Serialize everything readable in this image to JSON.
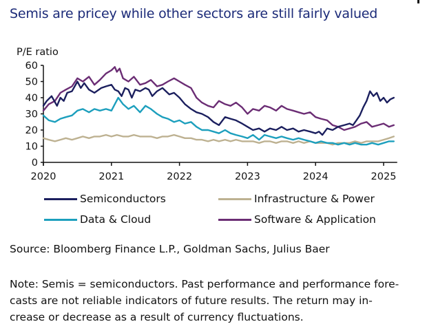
{
  "title": "Semis are pricey while other sectors are still fairly valued",
  "chart_data": {
    "type": "line",
    "title": "Semis are pricey while other sectors are still fairly valued",
    "ylabel": "P/E ratio",
    "xlabel": "",
    "ylim": [
      0,
      60
    ],
    "xlim": [
      2020,
      2025.2
    ],
    "y_ticks": [
      0,
      10,
      20,
      30,
      40,
      50,
      60
    ],
    "x_ticks": [
      2020,
      2021,
      2022,
      2023,
      2024,
      2025
    ],
    "x_tick_labels": [
      "2020",
      "2021",
      "2022",
      "2023",
      "2024",
      "2025"
    ],
    "grid": false,
    "legend_position": "bottom",
    "series": [
      {
        "name": "Semiconductors",
        "color": "#1b1f5e",
        "x": [
          2020.0,
          2020.05,
          2020.12,
          2020.2,
          2020.25,
          2020.3,
          2020.35,
          2020.42,
          2020.5,
          2020.55,
          2020.6,
          2020.67,
          2020.75,
          2020.85,
          2020.92,
          2021.0,
          2021.05,
          2021.1,
          2021.15,
          2021.2,
          2021.25,
          2021.3,
          2021.35,
          2021.42,
          2021.5,
          2021.55,
          2021.6,
          2021.67,
          2021.75,
          2021.85,
          2021.92,
          2022.0,
          2022.08,
          2022.17,
          2022.25,
          2022.33,
          2022.42,
          2022.5,
          2022.58,
          2022.67,
          2022.75,
          2022.83,
          2022.92,
          2023.0,
          2023.08,
          2023.17,
          2023.25,
          2023.33,
          2023.42,
          2023.5,
          2023.58,
          2023.67,
          2023.75,
          2023.83,
          2023.92,
          2024.0,
          2024.05,
          2024.1,
          2024.17,
          2024.25,
          2024.33,
          2024.42,
          2024.5,
          2024.55,
          2024.6,
          2024.65,
          2024.7,
          2024.75,
          2024.8,
          2024.85,
          2024.9,
          2024.95,
          2025.0,
          2025.05,
          2025.1,
          2025.15
        ],
        "values": [
          35,
          38,
          41,
          35,
          40,
          38,
          43,
          44,
          50,
          46,
          49,
          45,
          43,
          46,
          47,
          48,
          45,
          44,
          41,
          46,
          45,
          40,
          45,
          44,
          46,
          45,
          41,
          44,
          46,
          42,
          43,
          40,
          36,
          33,
          31,
          30,
          28,
          25,
          23,
          28,
          27,
          26,
          24,
          22,
          20,
          21,
          19,
          21,
          20,
          22,
          20,
          21,
          19,
          20,
          19,
          18,
          19,
          17,
          21,
          20,
          22,
          23,
          24,
          23,
          26,
          29,
          34,
          38,
          44,
          41,
          43,
          38,
          40,
          37,
          39,
          40
        ]
      },
      {
        "name": "Infrastructure & Power",
        "color": "#bdb191",
        "x": [
          2020.0,
          2020.08,
          2020.17,
          2020.25,
          2020.33,
          2020.42,
          2020.5,
          2020.58,
          2020.67,
          2020.75,
          2020.83,
          2020.92,
          2021.0,
          2021.08,
          2021.17,
          2021.25,
          2021.33,
          2021.42,
          2021.5,
          2021.58,
          2021.67,
          2021.75,
          2021.83,
          2021.92,
          2022.0,
          2022.08,
          2022.17,
          2022.25,
          2022.33,
          2022.42,
          2022.5,
          2022.58,
          2022.67,
          2022.75,
          2022.83,
          2022.92,
          2023.0,
          2023.08,
          2023.17,
          2023.25,
          2023.33,
          2023.42,
          2023.5,
          2023.58,
          2023.67,
          2023.75,
          2023.83,
          2023.92,
          2024.0,
          2024.08,
          2024.17,
          2024.25,
          2024.33,
          2024.42,
          2024.5,
          2024.58,
          2024.67,
          2024.75,
          2024.83,
          2024.92,
          2025.0,
          2025.08,
          2025.15
        ],
        "values": [
          15,
          14,
          13,
          14,
          15,
          14,
          15,
          16,
          15,
          16,
          16,
          17,
          16,
          17,
          16,
          16,
          17,
          16,
          16,
          16,
          15,
          16,
          16,
          17,
          16,
          15,
          15,
          14,
          14,
          13,
          14,
          13,
          14,
          13,
          14,
          13,
          13,
          13,
          12,
          13,
          13,
          12,
          13,
          13,
          12,
          13,
          12,
          13,
          12,
          12,
          12,
          11,
          12,
          12,
          12,
          13,
          12,
          13,
          13,
          13,
          14,
          15,
          16
        ]
      },
      {
        "name": "Data & Cloud",
        "color": "#1c9fbd",
        "x": [
          2020.0,
          2020.08,
          2020.17,
          2020.25,
          2020.33,
          2020.42,
          2020.5,
          2020.58,
          2020.67,
          2020.75,
          2020.83,
          2020.92,
          2021.0,
          2021.05,
          2021.1,
          2021.17,
          2021.25,
          2021.33,
          2021.42,
          2021.5,
          2021.58,
          2021.67,
          2021.75,
          2021.83,
          2021.92,
          2022.0,
          2022.08,
          2022.17,
          2022.25,
          2022.33,
          2022.42,
          2022.5,
          2022.58,
          2022.67,
          2022.75,
          2022.83,
          2022.92,
          2023.0,
          2023.08,
          2023.17,
          2023.25,
          2023.33,
          2023.42,
          2023.5,
          2023.58,
          2023.67,
          2023.75,
          2023.83,
          2023.92,
          2024.0,
          2024.08,
          2024.17,
          2024.25,
          2024.33,
          2024.42,
          2024.5,
          2024.58,
          2024.67,
          2024.75,
          2024.83,
          2024.92,
          2025.0,
          2025.08,
          2025.15
        ],
        "values": [
          29,
          26,
          25,
          27,
          28,
          29,
          32,
          33,
          31,
          33,
          32,
          33,
          32,
          36,
          40,
          36,
          33,
          35,
          31,
          35,
          33,
          30,
          28,
          27,
          25,
          26,
          24,
          25,
          22,
          20,
          20,
          19,
          18,
          20,
          18,
          17,
          16,
          15,
          17,
          14,
          17,
          16,
          15,
          16,
          15,
          14,
          15,
          14,
          13,
          12,
          13,
          12,
          12,
          11,
          12,
          11,
          12,
          11,
          11,
          12,
          11,
          12,
          13,
          13
        ]
      },
      {
        "name": "Software & Application",
        "color": "#6b2d74",
        "x": [
          2020.0,
          2020.08,
          2020.17,
          2020.25,
          2020.33,
          2020.42,
          2020.5,
          2020.58,
          2020.67,
          2020.75,
          2020.83,
          2020.92,
          2021.0,
          2021.05,
          2021.08,
          2021.12,
          2021.17,
          2021.25,
          2021.33,
          2021.42,
          2021.5,
          2021.58,
          2021.67,
          2021.75,
          2021.83,
          2021.92,
          2022.0,
          2022.08,
          2022.17,
          2022.25,
          2022.33,
          2022.42,
          2022.5,
          2022.58,
          2022.67,
          2022.75,
          2022.83,
          2022.92,
          2023.0,
          2023.08,
          2023.17,
          2023.25,
          2023.33,
          2023.42,
          2023.5,
          2023.58,
          2023.67,
          2023.75,
          2023.83,
          2023.92,
          2024.0,
          2024.08,
          2024.17,
          2024.25,
          2024.33,
          2024.42,
          2024.5,
          2024.58,
          2024.67,
          2024.75,
          2024.83,
          2024.92,
          2025.0,
          2025.08,
          2025.15
        ],
        "values": [
          32,
          36,
          38,
          43,
          45,
          47,
          52,
          50,
          53,
          48,
          51,
          55,
          57,
          59,
          56,
          58,
          52,
          50,
          53,
          48,
          49,
          51,
          47,
          48,
          50,
          52,
          50,
          48,
          46,
          40,
          37,
          35,
          34,
          38,
          36,
          35,
          37,
          34,
          30,
          33,
          32,
          35,
          34,
          32,
          35,
          33,
          32,
          31,
          30,
          31,
          28,
          27,
          26,
          23,
          22,
          20,
          21,
          22,
          24,
          25,
          22,
          23,
          24,
          22,
          23
        ]
      }
    ]
  },
  "source": "Source: Bloomberg Finance L.P., Goldman Sachs, Julius Baer",
  "note": {
    "line1": "Note: Semis = semiconductors. Past performance and performance fore-",
    "line2": "casts are not reliable indicators of future results. The return may in-",
    "line3": "crease or decrease as a result of currency fluctuations."
  }
}
